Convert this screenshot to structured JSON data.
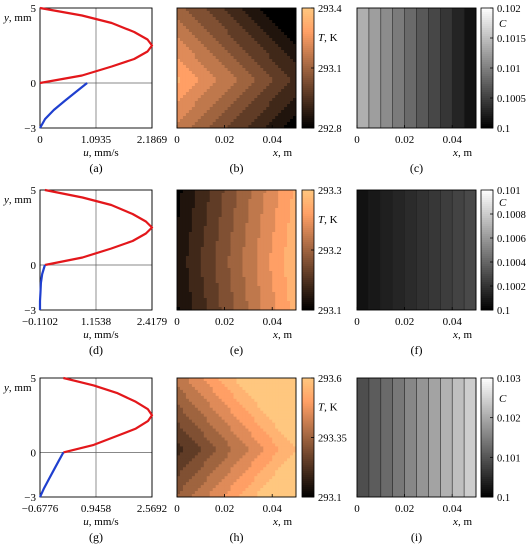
{
  "chart_data": [
    {
      "panel": "a",
      "type": "line",
      "caption": "(a)",
      "xlabel": "u, mm/s",
      "ylabel": "y, mm",
      "xticks": [
        "0",
        "1.0935",
        "2.1869"
      ],
      "yticks": [
        "5",
        "0",
        "−3"
      ],
      "xlim": [
        0,
        2.1869
      ],
      "ylim": [
        -3,
        5
      ],
      "grid": true,
      "series": [
        {
          "color": "#e3171b",
          "x": [
            0,
            0.82,
            1.4,
            1.84,
            2.1,
            2.1869,
            2.1,
            1.84,
            1.4,
            0.82,
            0
          ],
          "y": [
            5,
            4.5,
            4,
            3.4,
            2.9,
            2.5,
            2.1,
            1.6,
            1.1,
            0.5,
            0
          ]
        },
        {
          "color": "#1f3fcf",
          "x": [
            0.92,
            0.7,
            0.48,
            0.27,
            0.1,
            0
          ],
          "y": [
            0,
            -0.6,
            -1.2,
            -1.8,
            -2.4,
            -3
          ]
        }
      ]
    },
    {
      "panel": "b",
      "type": "heatmap",
      "caption": "(b)",
      "xlabel": "x, m",
      "cbar_label": "T, K",
      "xticks": [
        "0",
        "0.02",
        "0.04"
      ],
      "cbar_ticks": [
        "293.4",
        "293.1",
        "292.8"
      ],
      "clim": [
        292.8,
        293.4
      ],
      "colormap": "copper"
    },
    {
      "panel": "c",
      "type": "heatmap",
      "caption": "(c)",
      "xlabel": "x, m",
      "cbar_label": "C",
      "xticks": [
        "0",
        "0.02",
        "0.04"
      ],
      "cbar_ticks": [
        "0.102",
        "0.1015",
        "0.101",
        "0.1005",
        "0.1"
      ],
      "clim": [
        0.1,
        0.102
      ],
      "colormap": "gray"
    },
    {
      "panel": "d",
      "type": "line",
      "caption": "(d)",
      "xlabel": "u, mm/s",
      "ylabel": "y, mm",
      "xticks": [
        "−0.1102",
        "1.1538",
        "2.4179"
      ],
      "yticks": [
        "5",
        "0",
        "−3"
      ],
      "xlim": [
        -0.1102,
        2.4179
      ],
      "ylim": [
        -3,
        5
      ],
      "grid": true,
      "series": [
        {
          "color": "#e3171b",
          "x": [
            -0.0,
            0.85,
            1.5,
            1.98,
            2.28,
            2.4179,
            2.28,
            1.98,
            1.5,
            0.85,
            0
          ],
          "y": [
            5,
            4.5,
            4,
            3.4,
            2.9,
            2.5,
            2.1,
            1.6,
            1.1,
            0.5,
            0
          ]
        },
        {
          "color": "#1f3fcf",
          "x": [
            0,
            -0.06,
            -0.09,
            -0.1,
            -0.1102,
            -0.1102
          ],
          "y": [
            0,
            -0.6,
            -1.2,
            -1.8,
            -2.4,
            -3
          ]
        }
      ]
    },
    {
      "panel": "e",
      "type": "heatmap",
      "caption": "(e)",
      "xlabel": "x, m",
      "cbar_label": "T, K",
      "xticks": [
        "0",
        "0.02",
        "0.04"
      ],
      "cbar_ticks": [
        "293.3",
        "293.2",
        "293.1"
      ],
      "clim": [
        293.1,
        293.3
      ],
      "colormap": "copper"
    },
    {
      "panel": "f",
      "type": "heatmap",
      "caption": "(f)",
      "xlabel": "x, m",
      "cbar_label": "C",
      "xticks": [
        "0",
        "0.02",
        "0.04"
      ],
      "cbar_ticks": [
        "0.101",
        "0.1008",
        "0.1006",
        "0.1004",
        "0.1002",
        "0.1"
      ],
      "clim": [
        0.1,
        0.101
      ],
      "colormap": "gray"
    },
    {
      "panel": "g",
      "type": "line",
      "caption": "(g)",
      "xlabel": "u, mm/s",
      "ylabel": "y, mm",
      "xticks": [
        "−0.6776",
        "0.9458",
        "2.5692"
      ],
      "yticks": [
        "5",
        "0",
        "−3"
      ],
      "xlim": [
        -0.6776,
        2.5692
      ],
      "ylim": [
        -3,
        5
      ],
      "grid": true,
      "series": [
        {
          "color": "#e3171b",
          "x": [
            0,
            0.88,
            1.55,
            2.1,
            2.45,
            2.5692,
            2.45,
            2.1,
            1.55,
            0.88,
            0
          ],
          "y": [
            5,
            4.5,
            4,
            3.4,
            2.9,
            2.5,
            2.1,
            1.6,
            1.1,
            0.5,
            0
          ]
        },
        {
          "color": "#1f3fcf",
          "x": [
            0,
            -0.14,
            -0.28,
            -0.42,
            -0.56,
            -0.6776
          ],
          "y": [
            0,
            -0.6,
            -1.2,
            -1.8,
            -2.4,
            -3
          ]
        }
      ]
    },
    {
      "panel": "h",
      "type": "heatmap",
      "caption": "(h)",
      "xlabel": "x, m",
      "cbar_label": "T, K",
      "xticks": [
        "0",
        "0.02",
        "0.04"
      ],
      "cbar_ticks": [
        "293.6",
        "293.35",
        "293.1"
      ],
      "clim": [
        293.1,
        293.6
      ],
      "colormap": "copper"
    },
    {
      "panel": "i",
      "type": "heatmap",
      "caption": "(i)",
      "xlabel": "x, m",
      "cbar_label": "C",
      "xticks": [
        "0",
        "0.02",
        "0.04"
      ],
      "cbar_ticks": [
        "0.103",
        "0.102",
        "0.101",
        "0.1"
      ],
      "clim": [
        0.1,
        0.103
      ],
      "colormap": "gray"
    }
  ]
}
